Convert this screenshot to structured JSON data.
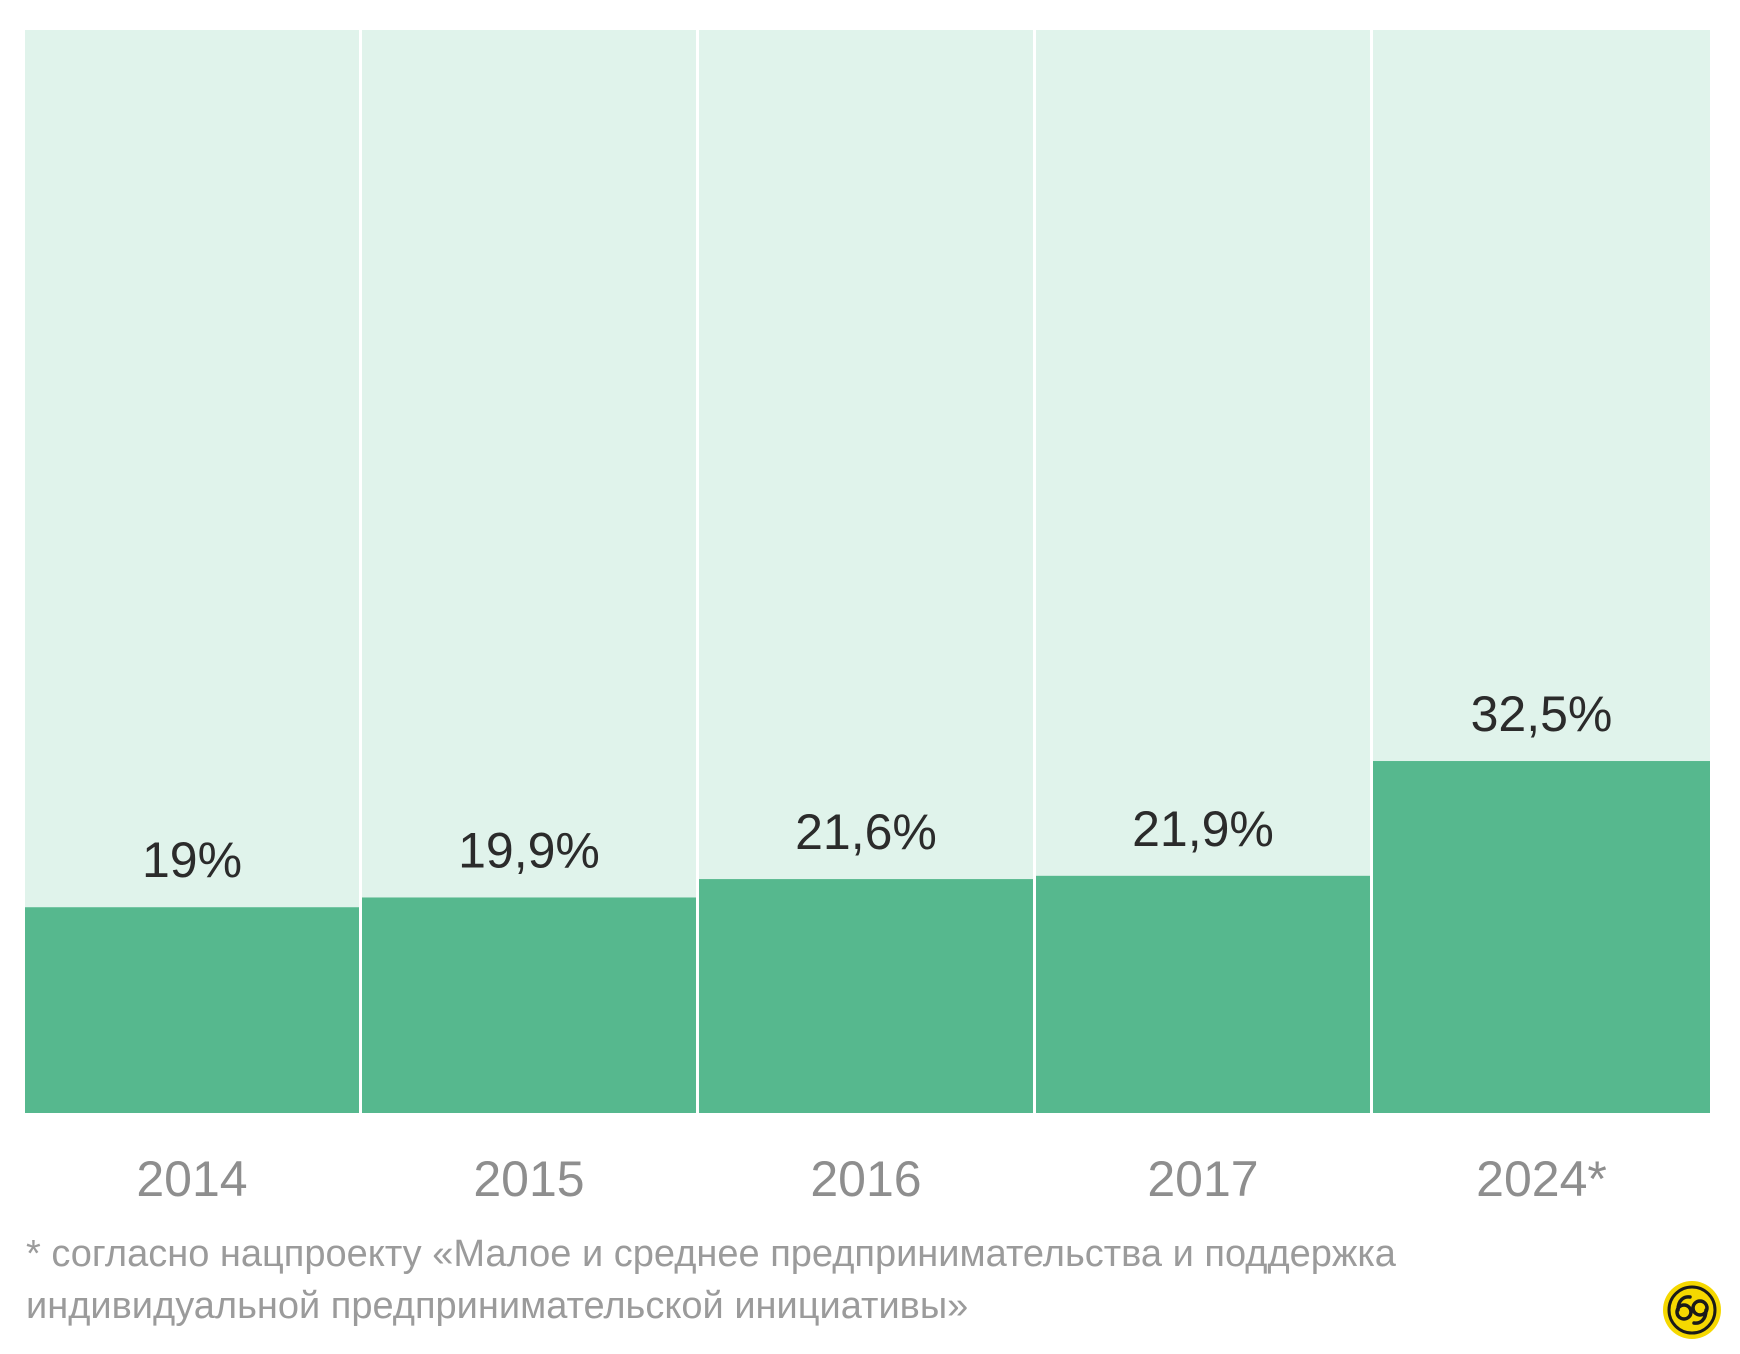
{
  "chart_data": {
    "type": "bar",
    "categories": [
      "2014",
      "2015",
      "2016",
      "2017",
      "2024*"
    ],
    "values": [
      19,
      19.9,
      21.6,
      21.9,
      32.5
    ],
    "value_labels": [
      "19%",
      "19,9%",
      "21,6%",
      "21,9%",
      "32,5%"
    ],
    "ylim": [
      0,
      100
    ],
    "grid": false,
    "colors": {
      "bar": "#56b88e",
      "background_column": "#e0f3eb",
      "value_label": "#2b2b2b",
      "category_label": "#8e8e8e"
    }
  },
  "footnote": "* согласно нацпроекту  «Малое и среднее предпринимательства и поддержка индивидуальной предпринимательской инициативы»",
  "logo": {
    "icon": "yellow-circle-logo-icon",
    "color": "#f5d800"
  }
}
